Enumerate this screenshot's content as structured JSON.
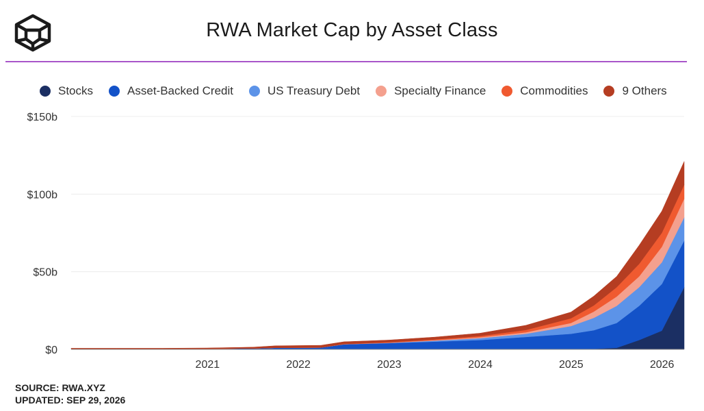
{
  "header": {
    "title": "RWA Market Cap by Asset Class",
    "logo": "cube-logo-icon",
    "rule_color": "#a855c9"
  },
  "legend": {
    "items": [
      {
        "label": "Stocks",
        "color": "#1b2f63"
      },
      {
        "label": "Asset-Backed Credit",
        "color": "#1352c8"
      },
      {
        "label": "US Treasury Debt",
        "color": "#5c93e8"
      },
      {
        "label": "Specialty Finance",
        "color": "#f4a08e"
      },
      {
        "label": "Commodities",
        "color": "#f05a30"
      },
      {
        "label": "9 Others",
        "color": "#b53d22"
      }
    ]
  },
  "chart_data": {
    "type": "area",
    "stacked": true,
    "title": "RWA Market Cap by Asset Class",
    "xlabel": "",
    "ylabel": "",
    "x_tick_labels": [
      "2021",
      "2022",
      "2023",
      "2024",
      "2025",
      "2026"
    ],
    "y_tick_labels": [
      "$0",
      "$50b",
      "$100b",
      "$150b"
    ],
    "ylim": [
      0,
      150
    ],
    "y_unit": "billions USD",
    "grid": true,
    "legend_position": "top",
    "x": [
      "2020-01-01",
      "2020-07-01",
      "2021-01-01",
      "2021-07-01",
      "2022-01-01",
      "2022-04-01",
      "2022-10-01",
      "2023-01-01",
      "2023-07-01",
      "2024-01-01",
      "2024-07-01",
      "2025-01-01",
      "2025-07-01",
      "2025-10-01",
      "2026-01-01",
      "2026-04-01",
      "2026-07-01",
      "2026-09-29"
    ],
    "series": [
      {
        "name": "Stocks",
        "color": "#1b2f63",
        "values": [
          0,
          0,
          0,
          0,
          0,
          0,
          0,
          0,
          0,
          0,
          0,
          0,
          0,
          0.3,
          1,
          6,
          12,
          40
        ]
      },
      {
        "name": "Asset-Backed Credit",
        "color": "#1352c8",
        "values": [
          0.3,
          0.3,
          0.3,
          0.4,
          0.6,
          1.0,
          1.2,
          3.2,
          4,
          5,
          6,
          8,
          10,
          12,
          16,
          22,
          30,
          30
        ]
      },
      {
        "name": "US Treasury Debt",
        "color": "#5c93e8",
        "values": [
          0,
          0,
          0,
          0,
          0,
          0,
          0,
          0.1,
          0.2,
          0.6,
          1.2,
          2,
          5,
          8,
          11,
          12,
          14,
          15
        ]
      },
      {
        "name": "Specialty Finance",
        "color": "#f4a08e",
        "values": [
          0,
          0,
          0,
          0,
          0,
          0,
          0,
          0,
          0.1,
          0.3,
          0.6,
          1,
          2,
          4,
          6,
          7,
          10,
          12
        ]
      },
      {
        "name": "Commodities",
        "color": "#f05a30",
        "values": [
          0,
          0,
          0,
          0,
          0,
          0,
          0,
          0.2,
          0.3,
          0.5,
          0.8,
          1.5,
          3,
          4,
          6,
          8,
          9,
          9
        ]
      },
      {
        "name": "9 Others",
        "color": "#b53d22",
        "values": [
          0.4,
          0.4,
          0.4,
          0.5,
          0.8,
          1.3,
          1.4,
          1.4,
          1.4,
          1.5,
          1.8,
          3,
          4,
          6,
          7,
          12,
          14,
          15
        ]
      }
    ]
  },
  "footer": {
    "source": "SOURCE: RWA.XYZ",
    "updated": "UPDATED: SEP 29, 2026"
  }
}
